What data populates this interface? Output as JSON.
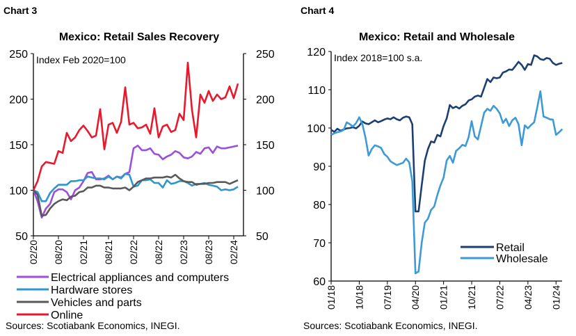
{
  "chart_data": [
    {
      "label": "Chart 3",
      "type": "line",
      "title": "Mexico:  Retail Sales Recovery",
      "annotation": "Index Feb 2020=100",
      "ylim": [
        50,
        250
      ],
      "yticks": [
        50,
        100,
        150,
        200,
        250
      ],
      "secondary_yticks": [
        50,
        100,
        150,
        200,
        250
      ],
      "x_start": "02/20",
      "x_end": "03/24",
      "xtick_labels": [
        "02/20",
        "08/20",
        "02/21",
        "08/21",
        "02/22",
        "08/22",
        "02/23",
        "08/23",
        "02/24"
      ],
      "legend_position": "bottom",
      "series": [
        {
          "name": "Electrical appliances and computers",
          "color": "#9b4fdc",
          "values": [
            100,
            88,
            70,
            80,
            85,
            98,
            101,
            101,
            98,
            90,
            100,
            103,
            110,
            119,
            120,
            112,
            112,
            113,
            116,
            112,
            115,
            114,
            118,
            120,
            146,
            149,
            144,
            144,
            146,
            140,
            139,
            134,
            137,
            139,
            143,
            141,
            136,
            135,
            137,
            142,
            140,
            146,
            147,
            141,
            148,
            146,
            146,
            147,
            148,
            149
          ]
        },
        {
          "name": "Hardware stores",
          "color": "#2f96cc",
          "values": [
            100,
            98,
            88,
            88,
            97,
            102,
            106,
            106,
            106,
            110,
            110,
            111,
            111,
            115,
            114,
            113,
            113,
            112,
            115,
            112,
            115,
            113,
            118,
            117,
            104,
            105,
            111,
            111,
            112,
            108,
            108,
            103,
            111,
            107,
            108,
            110,
            110,
            108,
            105,
            107,
            107,
            108,
            106,
            105,
            104,
            100,
            101,
            100,
            101,
            104
          ]
        },
        {
          "name": "Vehicles and parts",
          "color": "#595959",
          "values": [
            100,
            95,
            72,
            73,
            80,
            85,
            88,
            90,
            89,
            93,
            94,
            98,
            99,
            103,
            103,
            105,
            105,
            103,
            103,
            102,
            102,
            102,
            103,
            100,
            104,
            109,
            111,
            113,
            113,
            114,
            114,
            114,
            115,
            114,
            117,
            113,
            110,
            109,
            109,
            106,
            107,
            107,
            108,
            108,
            109,
            109,
            109,
            107,
            109,
            111
          ]
        },
        {
          "name": "Online",
          "color": "#e8192c",
          "values": [
            100,
            110,
            126,
            131,
            130,
            129,
            143,
            141,
            163,
            154,
            158,
            166,
            171,
            165,
            158,
            160,
            189,
            145,
            172,
            174,
            163,
            175,
            213,
            172,
            174,
            168,
            169,
            172,
            162,
            190,
            158,
            170,
            172,
            164,
            166,
            184,
            177,
            240,
            188,
            158,
            205,
            196,
            209,
            198,
            205,
            200,
            202,
            214,
            201,
            217
          ]
        }
      ],
      "source": "Sources: Scotiabank Economics, INEGI."
    },
    {
      "label": "Chart 4",
      "type": "line",
      "title": "Mexico:  Retail and Wholesale",
      "annotation": "Index 2018=100 s.a.",
      "ylim": [
        60,
        120
      ],
      "yticks": [
        60,
        70,
        80,
        90,
        100,
        110,
        120
      ],
      "x_start": "01/18",
      "x_end": "03/24",
      "xtick_labels": [
        "01/18",
        "10/18",
        "07/19",
        "04/20",
        "01/21",
        "10/21",
        "07/22",
        "04/23",
        "01/24"
      ],
      "legend_position": "bottom-right",
      "series": [
        {
          "name": "Retail",
          "color": "#1b3f73",
          "values": [
            99.5,
            99,
            99.8,
            99.3,
            99.6,
            99.9,
            100,
            100.2,
            99.9,
            100.6,
            101.7,
            101.2,
            101,
            101.5,
            102,
            101.5,
            101.8,
            102.2,
            102.5,
            102.3,
            102.8,
            102.3,
            102,
            102.7,
            103,
            102.8,
            101,
            78.2,
            78.2,
            85,
            91.5,
            94.5,
            96.5,
            96.2,
            98.2,
            97.8,
            100.5,
            102.5,
            106,
            105.2,
            105.6,
            105.1,
            105.8,
            106.2,
            107.2,
            107.5,
            108.2,
            108.5,
            108.2,
            110.5,
            112.8,
            112,
            113.2,
            113,
            113.2,
            114.5,
            114.8,
            115.3,
            115.2,
            116.2,
            117.3,
            116.5,
            115.2,
            116.7,
            116.5,
            119,
            118.7,
            118,
            117.8,
            118.3,
            118.1,
            117,
            116.5,
            116.8,
            117
          ]
        },
        {
          "name": "Wholesale",
          "color": "#3d9ad6",
          "values": [
            98.2,
            98.6,
            98.9,
            99.1,
            99.5,
            101.5,
            101,
            100.4,
            101.3,
            102.8,
            101,
            97.5,
            92.8,
            94.5,
            95.5,
            95.2,
            94.8,
            93.2,
            92.5,
            91.3,
            90.8,
            90.3,
            90.6,
            90.9,
            92,
            91,
            86,
            62,
            62.5,
            70,
            75.3,
            76.3,
            78.6,
            79.5,
            82.5,
            85,
            87,
            91.5,
            92.7,
            90.9,
            94,
            94.7,
            95.6,
            95.3,
            97.6,
            101.8,
            97.8,
            97,
            100.5,
            104,
            105,
            104.5,
            105.8,
            105,
            103.8,
            101.3,
            102.4,
            100.5,
            102,
            102.7,
            101,
            95.5,
            100.7,
            99.9,
            100.8,
            101.5,
            105.4,
            109.6,
            103,
            102.7,
            102.3,
            102.2,
            98.2,
            98.9,
            99.7
          ]
        }
      ],
      "source": "Sources: Scotiabank Economics, INEGI."
    }
  ]
}
